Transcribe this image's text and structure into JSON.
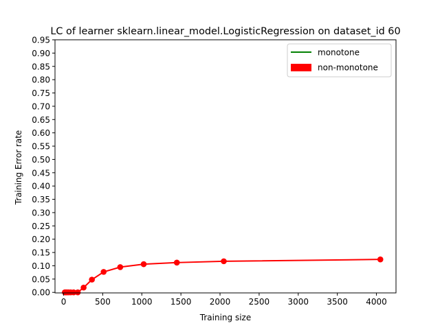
{
  "chart_data": {
    "type": "line",
    "title": "LC of learner sklearn.linear_model.LogisticRegression on dataset_id 60",
    "xlabel": "Training size",
    "ylabel": "Training Error rate",
    "xlim": [
      -110,
      4250
    ],
    "ylim": [
      -0.002,
      0.95
    ],
    "xticks": [
      0,
      500,
      1000,
      1500,
      2000,
      2500,
      3000,
      3500,
      4000
    ],
    "xtick_labels": [
      "0",
      "500",
      "1000",
      "1500",
      "2000",
      "2500",
      "3000",
      "3500",
      "4000"
    ],
    "yticks": [
      0.0,
      0.05,
      0.1,
      0.15,
      0.2,
      0.25,
      0.3,
      0.35,
      0.4,
      0.45,
      0.5,
      0.55,
      0.6,
      0.65,
      0.7,
      0.75,
      0.8,
      0.85,
      0.9,
      0.95
    ],
    "ytick_labels": [
      "0.00",
      "0.05",
      "0.10",
      "0.15",
      "0.20",
      "0.25",
      "0.30",
      "0.35",
      "0.40",
      "0.45",
      "0.50",
      "0.55",
      "0.60",
      "0.65",
      "0.70",
      "0.75",
      "0.80",
      "0.85",
      "0.90",
      "0.95"
    ],
    "grid": false,
    "legend_position": "top-right",
    "legend": [
      {
        "label": "monotone",
        "color": "#008000",
        "marker": "line"
      },
      {
        "label": "non-monotone",
        "color": "#ff0000",
        "marker": "patch"
      }
    ],
    "series": [
      {
        "color": "#ff0000",
        "x": [
          16,
          23,
          32,
          45,
          64,
          91,
          128,
          181,
          256,
          362,
          512,
          724,
          1024,
          1448,
          2048,
          4050
        ],
        "y": [
          0.0,
          0.0,
          0.0,
          0.0,
          0.0,
          0.0,
          0.0,
          0.0,
          0.018,
          0.048,
          0.077,
          0.095,
          0.106,
          0.112,
          0.117,
          0.124
        ]
      }
    ]
  }
}
